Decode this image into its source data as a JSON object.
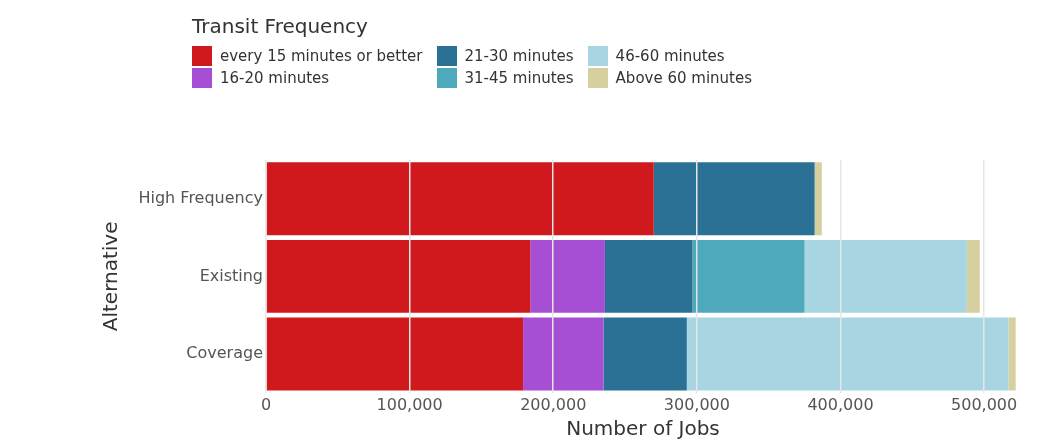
{
  "chart_data": {
    "type": "bar",
    "orientation": "horizontal",
    "stacked": true,
    "xlabel": "Number of Jobs",
    "ylabel": "Alternative",
    "legend_title": "Transit Frequency",
    "legend": "top left",
    "grid": "x",
    "categories": [
      "High Frequency",
      "Existing",
      "Coverage"
    ],
    "series": [
      {
        "name": "every 15 minutes or better",
        "color": "#d0191c",
        "values": [
          270000,
          184000,
          179000
        ]
      },
      {
        "name": "16-20 minutes",
        "color": "#a64fd4",
        "values": [
          0,
          52000,
          56000
        ]
      },
      {
        "name": "21-30 minutes",
        "color": "#2b7095",
        "values": [
          112000,
          61000,
          58000
        ]
      },
      {
        "name": "31-45 minutes",
        "color": "#4fa9bc",
        "values": [
          0,
          78000,
          0
        ]
      },
      {
        "name": "46-60 minutes",
        "color": "#a8d5e2",
        "values": [
          0,
          113000,
          224000
        ]
      },
      {
        "name": "Above 60 minutes",
        "color": "#d6cf9e",
        "values": [
          5000,
          9000,
          5000
        ]
      }
    ],
    "xlim": [
      0,
      525000
    ],
    "xticks": [
      0,
      {
        "value": 100000,
        "label": "100,000"
      },
      {
        "value": 200000,
        "label": "200,000"
      },
      {
        "value": 300000,
        "label": "300,000"
      },
      {
        "value": 400000,
        "label": "400,000"
      },
      {
        "value": 500000,
        "label": "500,000"
      }
    ]
  }
}
